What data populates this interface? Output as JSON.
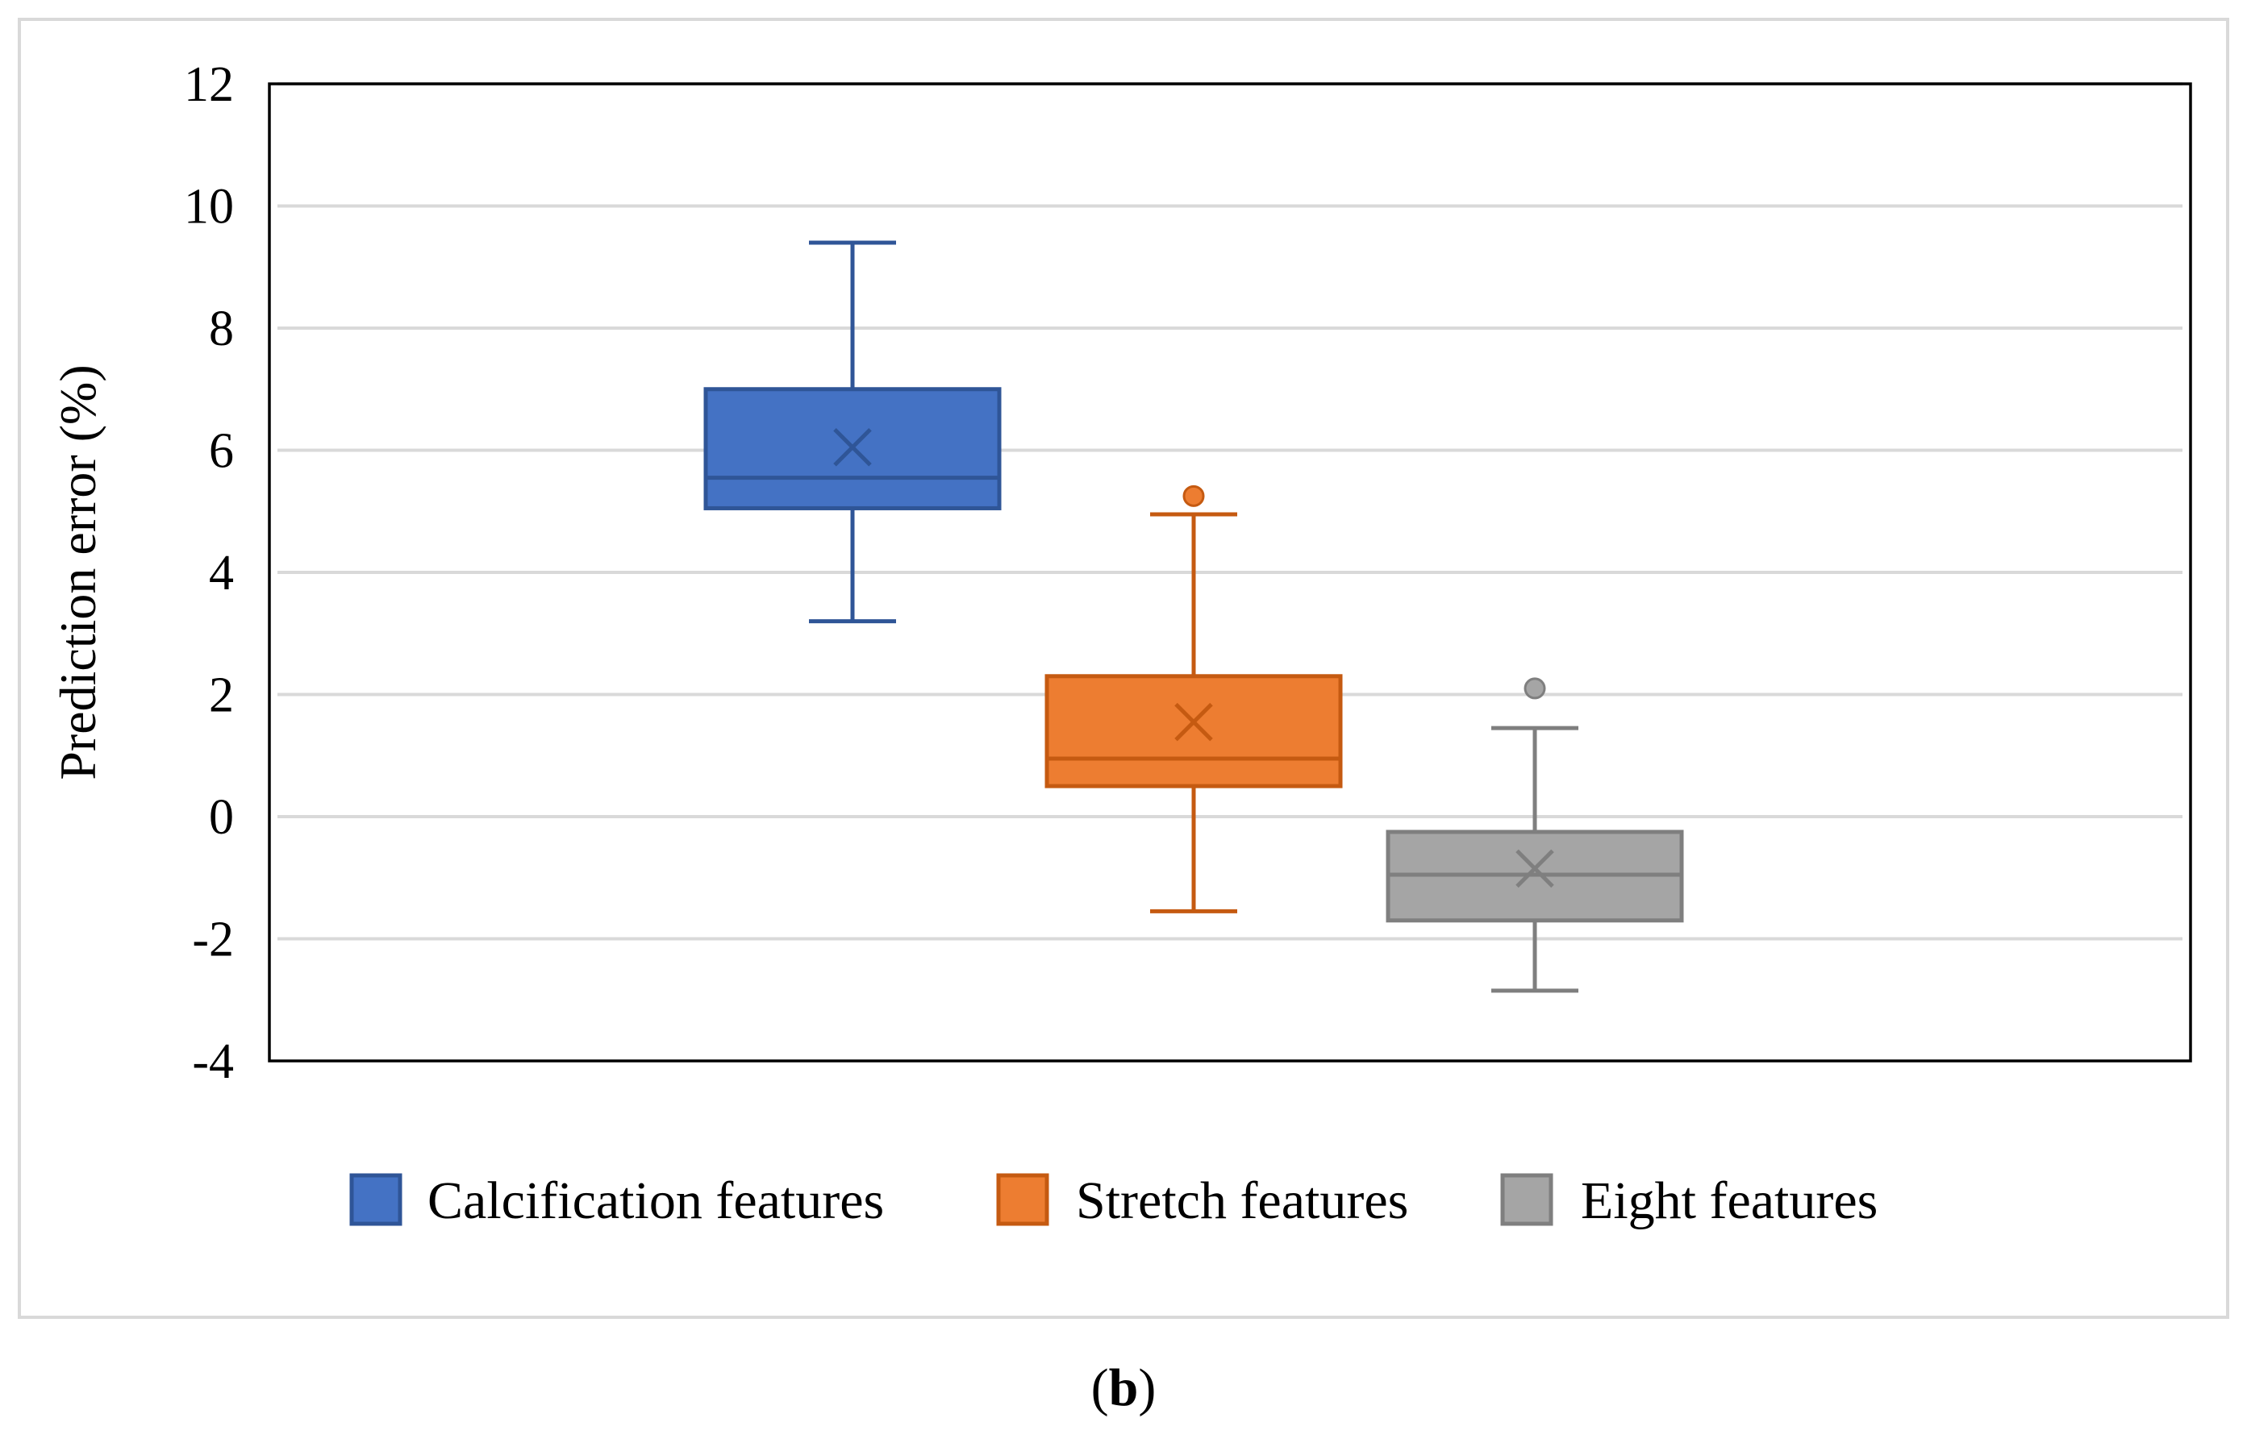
{
  "chart_data": {
    "type": "boxplot",
    "title": "",
    "xlabel": "",
    "ylabel": "Prediction error (%)",
    "ylim": [
      -4,
      12
    ],
    "yticks": [
      -4,
      -2,
      0,
      2,
      4,
      6,
      8,
      10,
      12
    ],
    "ytick_labels": [
      "-4",
      "-2",
      "0",
      "2",
      "4",
      "6",
      "8",
      "10",
      "12"
    ],
    "grid": true,
    "legend_position": "bottom",
    "series": [
      {
        "name": "Calcification features",
        "color": "#4472C4",
        "edge_color": "#2F5597",
        "whisker_low": 3.2,
        "q1": 5.05,
        "median": 5.55,
        "q3": 7.0,
        "whisker_high": 9.4,
        "mean": 6.05,
        "outliers": []
      },
      {
        "name": "Stretch features",
        "color": "#ED7D31",
        "edge_color": "#C55A11",
        "whisker_low": -1.55,
        "q1": 0.5,
        "median": 0.95,
        "q3": 2.3,
        "whisker_high": 4.95,
        "mean": 1.55,
        "outliers": [
          5.25
        ]
      },
      {
        "name": "Eight features",
        "color": "#A5A5A5",
        "edge_color": "#7F7F7F",
        "whisker_low": -2.85,
        "q1": -1.7,
        "median": -0.95,
        "q3": -0.25,
        "whisker_high": 1.45,
        "mean": -0.85,
        "outliers": [
          2.1
        ]
      }
    ],
    "caption": {
      "open": "(",
      "label": "b",
      "close": ")"
    }
  }
}
